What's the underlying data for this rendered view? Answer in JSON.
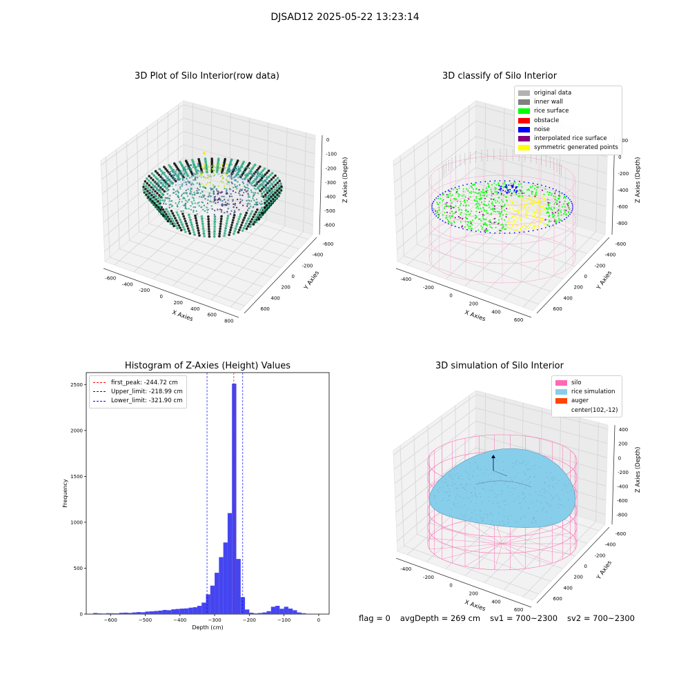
{
  "suptitle": "DJSAD12 2025-05-22 13:23:14",
  "footer": {
    "flag": "flag = 0",
    "avg_depth": "avgDepth = 269 cm",
    "sv1": "sv1 = 700~2300",
    "sv2": "sv2 = 700~2300"
  },
  "chart_data": [
    {
      "id": "raw",
      "type": "scatter",
      "title": "3D Plot of Silo Interior(row data)",
      "xlabel": "X Axies",
      "ylabel": "Y Axies",
      "zlabel": "Z Axies (Depth)",
      "x_ticks": [
        "-600",
        "-400",
        "-200",
        "0",
        "200",
        "400",
        "600",
        "800"
      ],
      "y_ticks": [
        "-600",
        "-400",
        "-200",
        "0",
        "200",
        "400",
        "600"
      ],
      "z_ticks": [
        "0",
        "-100",
        "-200",
        "-300",
        "-400",
        "-500",
        "-600"
      ],
      "colormap": "viridis",
      "grid": true
    },
    {
      "id": "classify",
      "type": "scatter",
      "title": "3D classify of Silo Interior",
      "xlabel": "X Axies",
      "ylabel": "Y Axies",
      "zlabel": "Z Axies (Depth)",
      "x_ticks": [
        "-400",
        "-200",
        "0",
        "200",
        "400",
        "600"
      ],
      "y_ticks": [
        "-600",
        "-400",
        "-200",
        "0",
        "200",
        "400",
        "600"
      ],
      "z_ticks": [
        "200",
        "0",
        "-200",
        "-400",
        "-600",
        "-800"
      ],
      "legend": [
        {
          "label": "original data",
          "color": "#b3b3b3"
        },
        {
          "label": "inner wall",
          "color": "#808080"
        },
        {
          "label": "rice surface",
          "color": "#00ff00"
        },
        {
          "label": "obstacle",
          "color": "#ff0000"
        },
        {
          "label": "noise",
          "color": "#0000ff"
        },
        {
          "label": "interpolated rice surface",
          "color": "#800080"
        },
        {
          "label": "symmetric generated points",
          "color": "#ffff00"
        }
      ],
      "legend_loc": "upper right",
      "grid": true
    },
    {
      "id": "hist",
      "type": "bar",
      "title": "Histogram of Z-Axies (Height) Values",
      "xlabel": "Depth (cm)",
      "ylabel": "Frequency",
      "xlim": [
        -670,
        30
      ],
      "ylim": [
        0,
        2630
      ],
      "x_ticks": [
        -600,
        -500,
        -400,
        -300,
        -200,
        -100,
        0
      ],
      "y_ticks": [
        0,
        500,
        1000,
        1500,
        2000,
        2500
      ],
      "bin_width": 12.5,
      "bin_start": -650,
      "values": [
        12,
        8,
        6,
        10,
        9,
        8,
        14,
        16,
        13,
        18,
        22,
        20,
        28,
        30,
        34,
        38,
        45,
        42,
        52,
        56,
        60,
        62,
        70,
        75,
        90,
        125,
        215,
        310,
        450,
        620,
        780,
        1100,
        2510,
        600,
        185,
        50,
        15,
        8,
        12,
        18,
        32,
        80,
        90,
        58,
        80,
        60,
        42,
        18,
        10,
        5
      ],
      "bar_color": "#4545f0",
      "lines": [
        {
          "label": "first_peak: -244.72 cm",
          "x": -244.72,
          "color": "#ff0000"
        },
        {
          "label": "Upper_limit: -218.99 cm",
          "x": -218.99,
          "color": "#0000ff"
        },
        {
          "label": "Lower_limit: -321.90 cm",
          "x": -321.9,
          "color": "#0000ff"
        }
      ],
      "legend_loc": "upper left",
      "grid": false
    },
    {
      "id": "sim",
      "type": "area",
      "title": "3D simulation of Silo Interior",
      "xlabel": "X Axies",
      "ylabel": "Y Axies",
      "zlabel": "Z Axies (Depth)",
      "x_ticks": [
        "-400",
        "-200",
        "0",
        "200",
        "400",
        "600"
      ],
      "y_ticks": [
        "-600",
        "-400",
        "-200",
        "0",
        "200",
        "400",
        "600"
      ],
      "z_ticks": [
        "400",
        "200",
        "0",
        "-200",
        "-400",
        "-600",
        "-800"
      ],
      "legend": [
        {
          "label": "silo",
          "color": "#ff69b4"
        },
        {
          "label": "rice simulation",
          "color": "#87ceeb"
        },
        {
          "label": "auger",
          "color": "#ff4500"
        },
        {
          "label": "center(102,-12)",
          "color": ""
        }
      ],
      "legend_loc": "upper right",
      "grid": true
    }
  ]
}
